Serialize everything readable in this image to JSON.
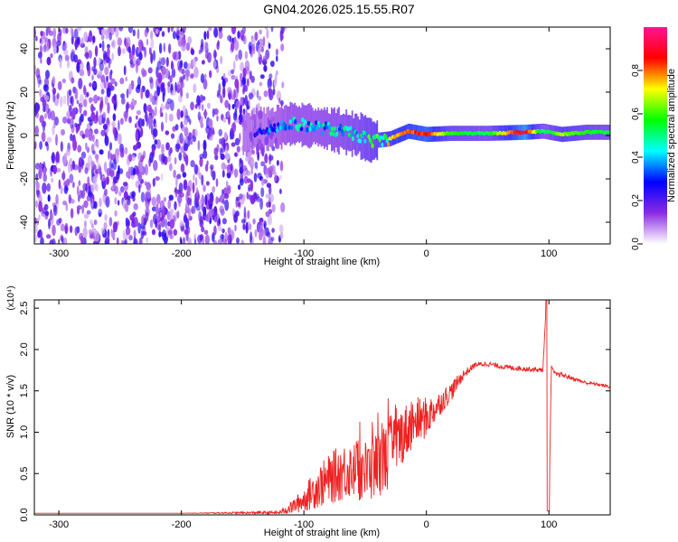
{
  "figure": {
    "title": "GN04.2026.025.15.55.R07"
  },
  "chart_data": [
    {
      "type": "heatmap",
      "title": "GN04.2026.025.15.55.R07",
      "xlabel": "Height of straight line (km)",
      "ylabel": "Frequency (Hz)",
      "xlim": [
        -320,
        150
      ],
      "ylim": [
        -50,
        50
      ],
      "x_ticks": [
        -300,
        -200,
        -100,
        0,
        100
      ],
      "y_ticks": [
        -40,
        -20,
        0,
        20,
        40
      ],
      "colorbar": {
        "label": "Normalized spectral amplitude",
        "range": [
          0.0,
          1.0
        ],
        "ticks": [
          "0.0",
          "0.2",
          "0.4",
          "0.6",
          "0.8"
        ],
        "colormap": [
          "#ffffff",
          "#8a2be2",
          "#0000ff",
          "#00ffff",
          "#00ff00",
          "#ffff00",
          "#ff0000",
          "#ff1493"
        ]
      },
      "noise_region": {
        "x_range": [
          -320,
          -125
        ],
        "freq_range": [
          -50,
          50
        ],
        "amplitude": [
          0.05,
          0.25
        ]
      },
      "carrier": {
        "points": [
          {
            "x": -150,
            "freq": 1.0,
            "amplitude": 0.15
          },
          {
            "x": -130,
            "freq": 3.0,
            "amplitude": 0.35
          },
          {
            "x": -110,
            "freq": 5.5,
            "amplitude": 0.45
          },
          {
            "x": -90,
            "freq": 4.0,
            "amplitude": 0.45
          },
          {
            "x": -70,
            "freq": 2.0,
            "amplitude": 0.5
          },
          {
            "x": -55,
            "freq": 0.0,
            "amplitude": 0.55
          },
          {
            "x": -45,
            "freq": -2.5,
            "amplitude": 0.6
          },
          {
            "x": -30,
            "freq": -1.5,
            "amplitude": 0.75
          },
          {
            "x": -15,
            "freq": 2.0,
            "amplitude": 0.85
          },
          {
            "x": 0,
            "freq": 0.5,
            "amplitude": 0.9
          },
          {
            "x": 20,
            "freq": 1.0,
            "amplitude": 0.6
          },
          {
            "x": 50,
            "freq": 1.0,
            "amplitude": 0.55
          },
          {
            "x": 80,
            "freq": 1.5,
            "amplitude": 1.0
          },
          {
            "x": 95,
            "freq": 2.0,
            "amplitude": 0.5
          },
          {
            "x": 110,
            "freq": 0.5,
            "amplitude": 0.7
          },
          {
            "x": 130,
            "freq": 1.5,
            "amplitude": 0.6
          },
          {
            "x": 150,
            "freq": 1.5,
            "amplitude": 0.55
          }
        ]
      }
    },
    {
      "type": "line",
      "xlabel": "Height of straight line (km)",
      "ylabel": "SNR (10 * v/v)",
      "y_scale_label": "(x10⁴)",
      "xlim": [
        -320,
        150
      ],
      "ylim": [
        0,
        2.6
      ],
      "x_ticks": [
        -300,
        -200,
        -100,
        0,
        100
      ],
      "y_ticks": [
        "0.0",
        "0.5",
        "1.0",
        "1.5",
        "2.0",
        "2.5"
      ],
      "color": "#ee2222",
      "series": [
        {
          "x": [
            -320,
            -200,
            -120,
            -110,
            -100,
            -90,
            -80,
            -70,
            -60,
            -50,
            -40,
            -30,
            -20,
            -10,
            0,
            10,
            20,
            30,
            40,
            50,
            60,
            70,
            80,
            90,
            95,
            98,
            100,
            102,
            105,
            110,
            120,
            130,
            140,
            150
          ],
          "y": [
            0.02,
            0.02,
            0.03,
            0.1,
            0.2,
            0.35,
            0.45,
            0.55,
            0.6,
            0.55,
            0.65,
            0.8,
            1.0,
            1.15,
            1.2,
            1.35,
            1.5,
            1.7,
            1.82,
            1.83,
            1.8,
            1.78,
            1.77,
            1.76,
            1.75,
            2.6,
            0.05,
            1.8,
            1.7,
            1.7,
            1.65,
            1.6,
            1.58,
            1.55
          ],
          "noise": [
            0.0,
            0.0,
            0.02,
            0.08,
            0.15,
            0.25,
            0.3,
            0.35,
            0.35,
            0.4,
            0.4,
            0.45,
            0.35,
            0.3,
            0.25,
            0.15,
            0.12,
            0.06,
            0.03,
            0.03,
            0.03,
            0.03,
            0.03,
            0.03,
            0.03,
            0.0,
            0.0,
            0.0,
            0.03,
            0.03,
            0.02,
            0.02,
            0.02,
            0.02
          ]
        }
      ]
    }
  ]
}
